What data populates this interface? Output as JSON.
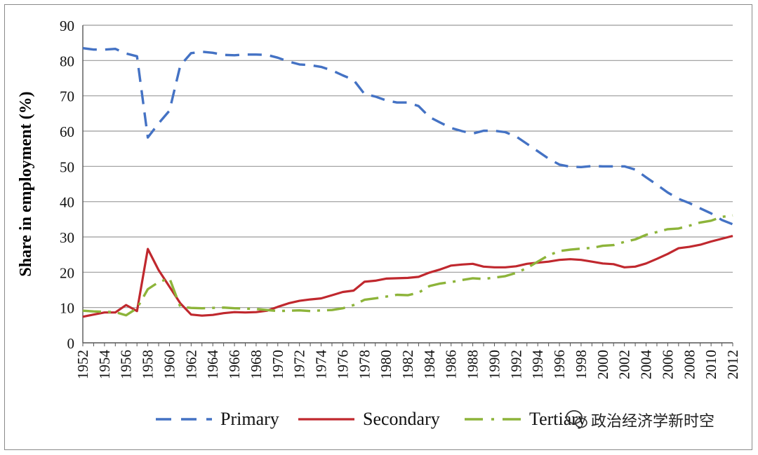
{
  "chart_data": {
    "type": "line",
    "title": "",
    "xlabel": "",
    "ylabel": "Share in employment (%)",
    "ylim": [
      0,
      90
    ],
    "yticks": [
      0,
      10,
      20,
      30,
      40,
      50,
      60,
      70,
      80,
      90
    ],
    "grid": true,
    "legend_position": "bottom",
    "x": [
      1952,
      1953,
      1954,
      1955,
      1956,
      1957,
      1958,
      1959,
      1960,
      1961,
      1962,
      1963,
      1964,
      1965,
      1966,
      1967,
      1968,
      1969,
      1970,
      1971,
      1972,
      1973,
      1974,
      1975,
      1976,
      1977,
      1978,
      1979,
      1980,
      1981,
      1982,
      1983,
      1984,
      1985,
      1986,
      1987,
      1988,
      1989,
      1990,
      1991,
      1992,
      1993,
      1994,
      1995,
      1996,
      1997,
      1998,
      1999,
      2000,
      2001,
      2002,
      2003,
      2004,
      2005,
      2006,
      2007,
      2008,
      2009,
      2010,
      2011,
      2012
    ],
    "x_tick_labels": [
      "1952",
      "1954",
      "1956",
      "1958",
      "1960",
      "1962",
      "1964",
      "1966",
      "1968",
      "1970",
      "1972",
      "1974",
      "1976",
      "1978",
      "1980",
      "1982",
      "1984",
      "1986",
      "1988",
      "1990",
      "1992",
      "1994",
      "1996",
      "1998",
      "2000",
      "2002",
      "2004",
      "2006",
      "2008",
      "2010",
      "2012"
    ],
    "series": [
      {
        "name": "Primary",
        "color": "#4472C4",
        "style": "dashed",
        "values": [
          83.5,
          83.1,
          83.1,
          83.3,
          82.0,
          81.2,
          58.2,
          62.2,
          65.8,
          78.6,
          82.1,
          82.5,
          82.2,
          81.6,
          81.5,
          81.7,
          81.7,
          81.6,
          80.8,
          79.7,
          78.9,
          78.7,
          78.2,
          77.2,
          75.8,
          74.5,
          70.5,
          69.8,
          68.7,
          68.1,
          68.1,
          67.1,
          64.0,
          62.4,
          60.9,
          60.0,
          59.3,
          60.1,
          60.1,
          59.7,
          58.5,
          56.4,
          54.3,
          52.2,
          50.5,
          49.9,
          49.8,
          50.1,
          50.0,
          50.0,
          50.0,
          49.1,
          46.9,
          44.8,
          42.6,
          40.8,
          39.6,
          38.1,
          36.7,
          34.8,
          33.6
        ]
      },
      {
        "name": "Secondary",
        "color": "#C0282E",
        "style": "solid",
        "values": [
          7.4,
          8.0,
          8.6,
          8.6,
          10.7,
          9.0,
          26.6,
          20.6,
          15.9,
          11.2,
          8.0,
          7.7,
          7.9,
          8.4,
          8.7,
          8.6,
          8.7,
          9.1,
          10.2,
          11.2,
          11.9,
          12.3,
          12.6,
          13.5,
          14.4,
          14.8,
          17.3,
          17.6,
          18.2,
          18.3,
          18.4,
          18.7,
          19.9,
          20.8,
          21.9,
          22.2,
          22.4,
          21.6,
          21.4,
          21.4,
          21.7,
          22.4,
          22.7,
          23.0,
          23.5,
          23.7,
          23.5,
          23.0,
          22.5,
          22.3,
          21.4,
          21.6,
          22.5,
          23.8,
          25.2,
          26.8,
          27.2,
          27.8,
          28.7,
          29.5,
          30.3
        ]
      },
      {
        "name": "Tertiary",
        "color": "#8DB43A",
        "style": "dashdot",
        "values": [
          9.1,
          8.9,
          8.8,
          8.7,
          7.8,
          9.8,
          15.2,
          17.2,
          18.3,
          10.2,
          9.9,
          9.8,
          9.9,
          10.0,
          9.8,
          9.7,
          9.6,
          9.3,
          9.0,
          9.1,
          9.2,
          9.0,
          9.2,
          9.3,
          9.8,
          10.7,
          12.2,
          12.6,
          13.1,
          13.6,
          13.5,
          14.2,
          16.1,
          16.8,
          17.2,
          17.8,
          18.3,
          18.1,
          18.5,
          18.9,
          19.8,
          21.2,
          23.0,
          24.8,
          26.0,
          26.4,
          26.7,
          26.9,
          27.5,
          27.7,
          28.6,
          29.3,
          30.6,
          31.4,
          32.2,
          32.4,
          33.2,
          34.1,
          34.6,
          35.7,
          36.1
        ]
      }
    ]
  },
  "watermark": {
    "text": "政治经济学新时空",
    "icon": "wechat-icon"
  }
}
